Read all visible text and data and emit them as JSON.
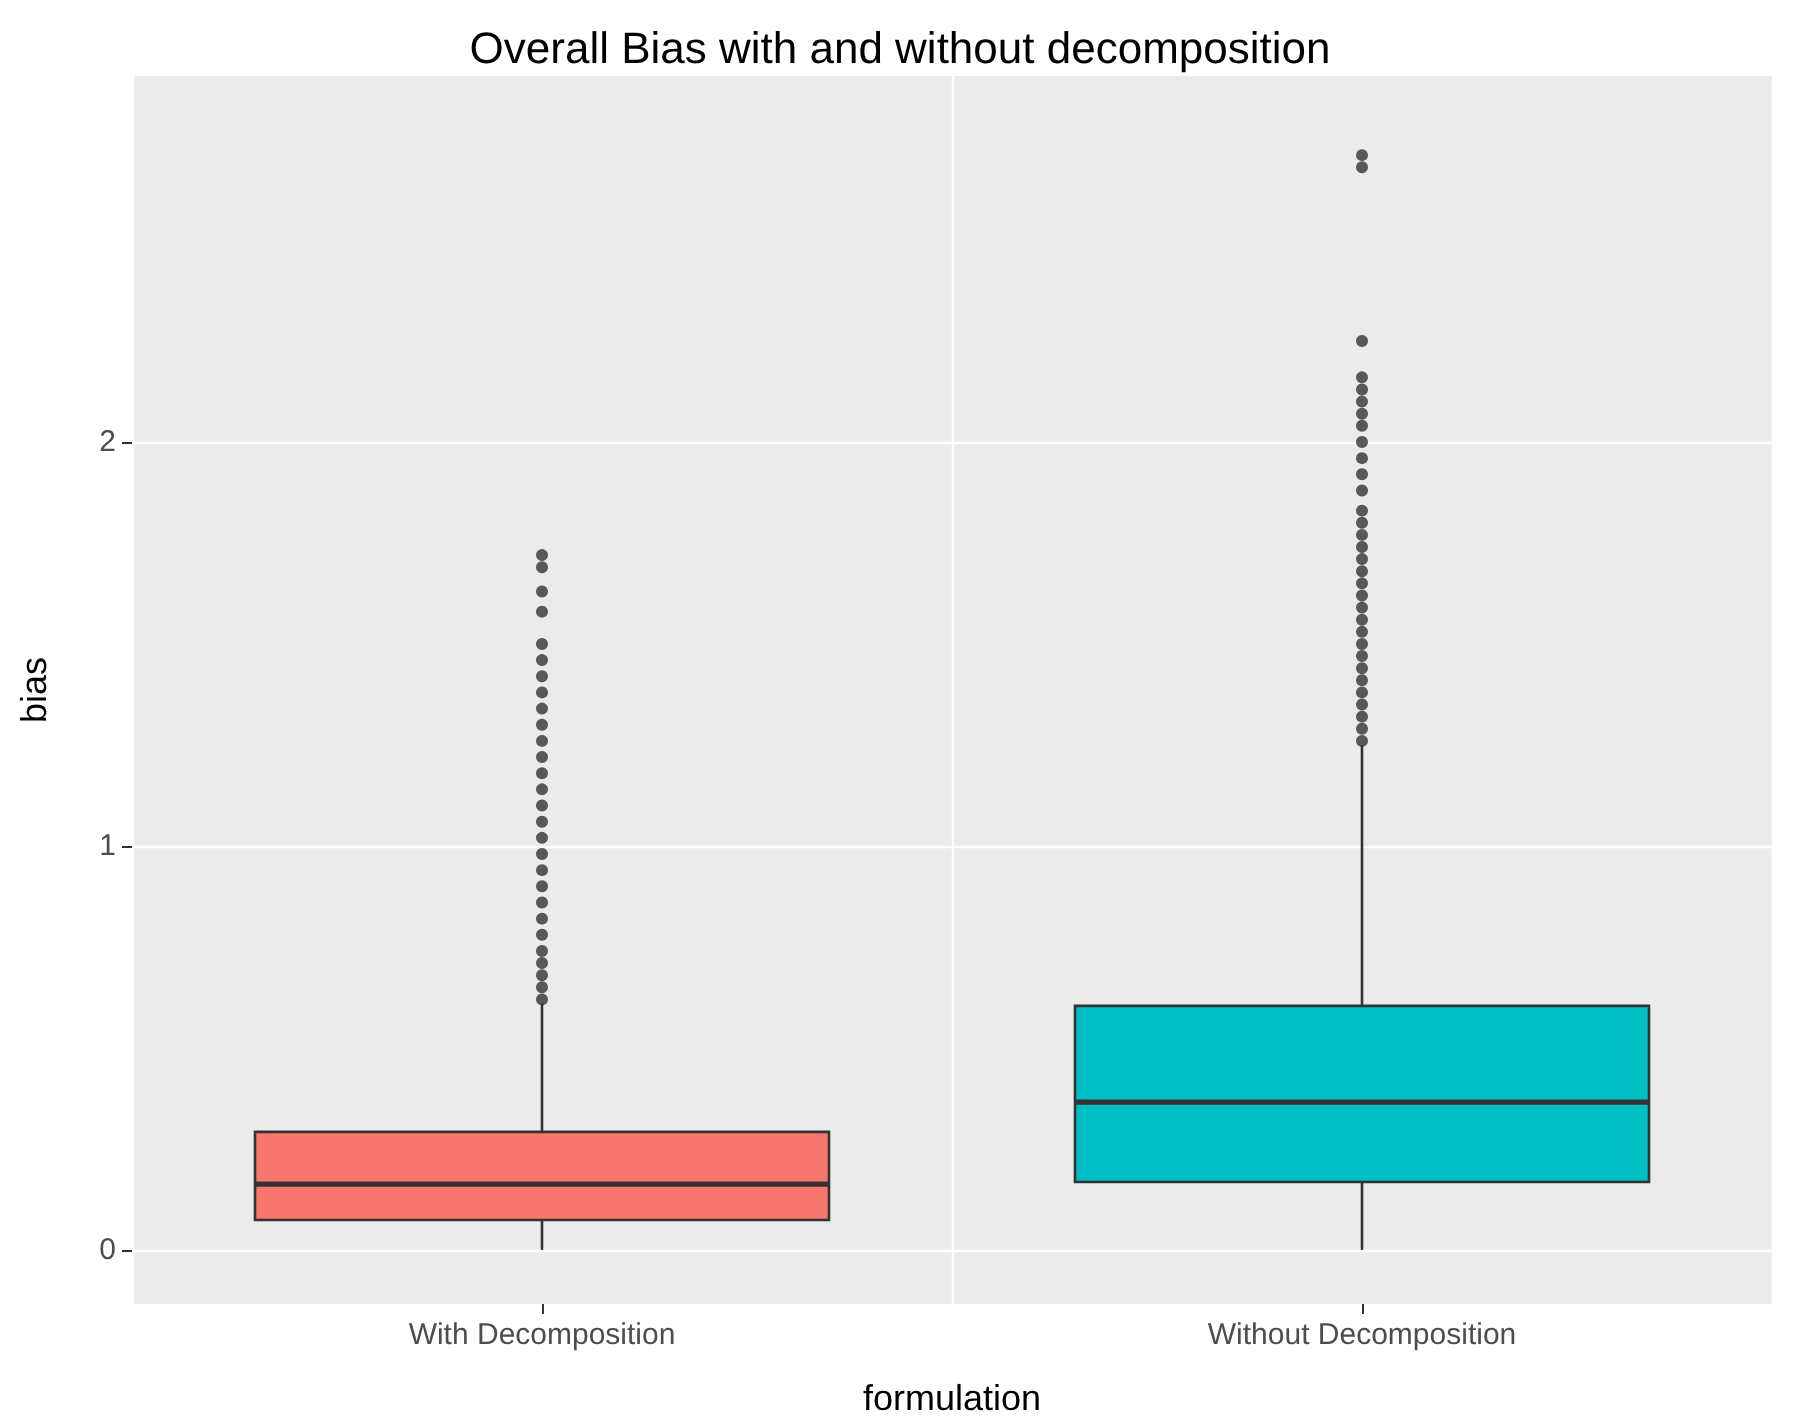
{
  "chart_data": {
    "type": "box",
    "title": "Overall Bias with and without decomposition",
    "xlabel": "formulation",
    "ylabel": "bias",
    "categories": [
      "With Decomposition",
      "Without Decomposition"
    ],
    "colors": [
      "#f8766d",
      "#00bfc4"
    ],
    "boxes": [
      {
        "low": 0,
        "q1": 0.074,
        "median": 0.163,
        "q3": 0.292,
        "high": 0.61,
        "outliers": [
          0.62,
          0.65,
          0.68,
          0.71,
          0.74,
          0.78,
          0.82,
          0.86,
          0.9,
          0.94,
          0.98,
          1.02,
          1.06,
          1.1,
          1.14,
          1.18,
          1.22,
          1.26,
          1.3,
          1.34,
          1.38,
          1.42,
          1.46,
          1.5,
          1.58,
          1.63,
          1.69,
          1.72
        ]
      },
      {
        "low": 0,
        "q1": 0.168,
        "median": 0.366,
        "q3": 0.604,
        "high": 1.25,
        "outliers": [
          1.26,
          1.29,
          1.32,
          1.35,
          1.38,
          1.41,
          1.44,
          1.47,
          1.5,
          1.53,
          1.56,
          1.59,
          1.62,
          1.65,
          1.68,
          1.71,
          1.74,
          1.77,
          1.8,
          1.83,
          1.88,
          1.92,
          1.96,
          2.0,
          2.04,
          2.07,
          2.1,
          2.13,
          2.16,
          2.25,
          2.68,
          2.71
        ]
      }
    ],
    "ylim": [
      -0.134,
      2.906
    ],
    "yticks": [
      0,
      1,
      2
    ],
    "grid": true
  }
}
